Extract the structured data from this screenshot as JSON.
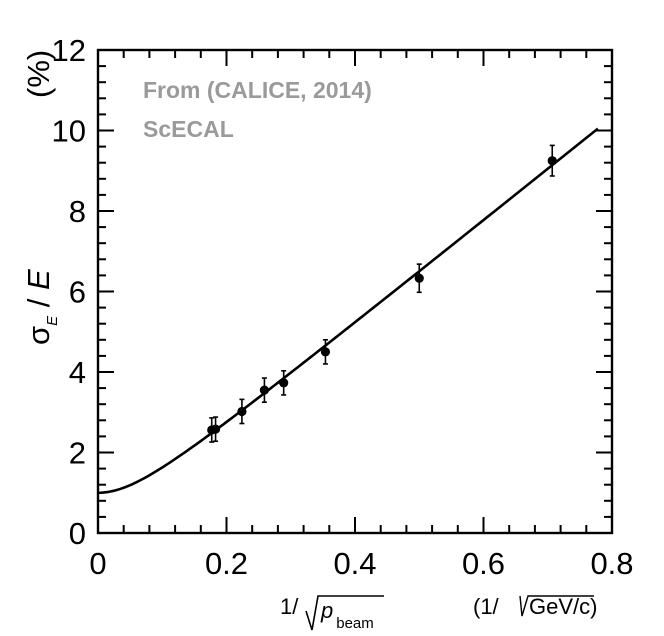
{
  "chart_data": {
    "type": "scatter",
    "title": "",
    "annotations": [
      "From (CALICE, 2014)",
      "ScECAL"
    ],
    "ylabel": {
      "sigma": "σ",
      "sub": "E",
      "rest": " / ",
      "e": "E",
      "unit": "(%)"
    },
    "xlabel": {
      "prefix": "1/ ",
      "var": "p",
      "sub": "beam",
      "unit_open": "(1/ ",
      "unit_root": "GeV/c)"
    },
    "xlim": [
      0,
      0.8
    ],
    "ylim": [
      0,
      12
    ],
    "x_ticks": [
      0,
      0.2,
      0.4,
      0.6,
      0.8
    ],
    "x_tick_labels": [
      "0",
      "0.2",
      "0.4",
      "0.6",
      "0.8"
    ],
    "y_ticks": [
      0,
      2,
      4,
      6,
      8,
      10,
      12
    ],
    "y_tick_labels": [
      "0",
      "2",
      "4",
      "6",
      "8",
      "10",
      "12"
    ],
    "x_minor_step": 0.04,
    "y_minor_step": 0.4,
    "series": [
      {
        "name": "data",
        "kind": "points",
        "x": [
          0.177,
          0.183,
          0.224,
          0.259,
          0.289,
          0.354,
          0.5,
          0.707
        ],
        "y": [
          2.56,
          2.58,
          3.02,
          3.55,
          3.73,
          4.5,
          6.33,
          9.25
        ],
        "yerr": [
          0.3,
          0.3,
          0.3,
          0.3,
          0.3,
          0.3,
          0.35,
          0.38
        ]
      },
      {
        "name": "fit",
        "kind": "curve",
        "stochastic": 12.85,
        "constant": 1.0,
        "x_max": 0.778
      }
    ],
    "colors": {
      "axis": "#000000",
      "annotation": "#9a9a9a"
    }
  }
}
